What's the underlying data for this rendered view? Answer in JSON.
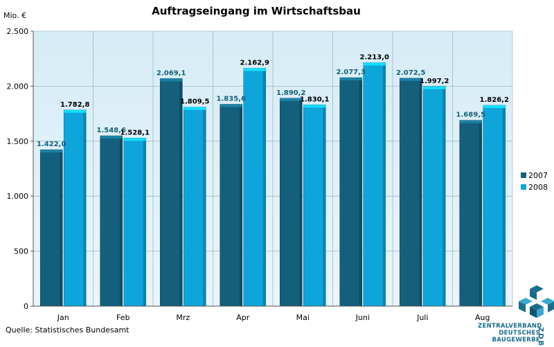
{
  "chart_data": {
    "type": "bar",
    "title": "Auftragseingang im Wirtschaftsbau",
    "ylabel": "Mio. €",
    "categories": [
      "Jan",
      "Feb",
      "Mrz",
      "Apr",
      "Mai",
      "Juni",
      "Juli",
      "Aug"
    ],
    "series": [
      {
        "name": "2007",
        "color": "#14607c",
        "values": [
          1422.0,
          1548.6,
          2069.1,
          1835.6,
          1890.2,
          2077.3,
          2072.5,
          1689.5
        ],
        "labels": [
          "1.422,0",
          "1.548,6",
          "2.069,1",
          "1.835,6",
          "1.890,2",
          "2.077,3",
          "2.072,5",
          "1.689,5"
        ]
      },
      {
        "name": "2008",
        "color": "#0ea5db",
        "values": [
          1782.8,
          1528.1,
          1809.5,
          2162.9,
          1830.1,
          2213.0,
          1997.2,
          1826.2
        ],
        "labels": [
          "1.782,8",
          "1.528,1",
          "1.809,5",
          "2.162,9",
          "1.830,1",
          "2.213,0",
          "1.997,2",
          "1.826,2"
        ]
      }
    ],
    "ylim": [
      0,
      2500
    ],
    "yticks": [
      0,
      500,
      1000,
      1500,
      2000,
      2500
    ],
    "ytick_labels": [
      "0",
      "500",
      "1.000",
      "1.500",
      "2.000",
      "2.500"
    ],
    "grid": true,
    "legend": "right"
  },
  "source": "Quelle: Statistisches Bundesamt",
  "logo": {
    "line1": "ZENTRALVERBAND",
    "line2": "DEUTSCHES",
    "line3": "BAUGEWERBE",
    "mark": "ZDB"
  }
}
